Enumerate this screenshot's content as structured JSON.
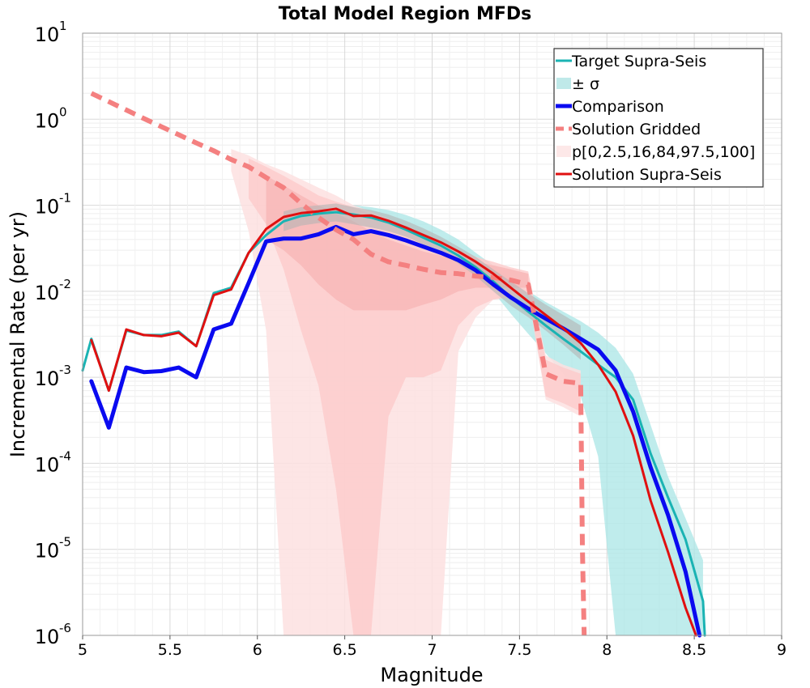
{
  "chart_data": {
    "type": "line",
    "title": "Total Model Region MFDs",
    "xlabel": "Magnitude",
    "ylabel": "Incremental Rate (per yr)",
    "xlim": [
      5,
      9
    ],
    "ylim": [
      1e-06,
      10
    ],
    "yscale": "log",
    "grid": true,
    "legend_position": "top-right",
    "xticks": [
      "5",
      "5.5",
      "6",
      "6.5",
      "7",
      "7.5",
      "8",
      "8.5",
      "9"
    ],
    "xtick_values": [
      5,
      5.5,
      6,
      6.5,
      7,
      7.5,
      8,
      8.5,
      9
    ],
    "yticks": [
      {
        "value": 10,
        "base": "10",
        "exp": "1"
      },
      {
        "value": 1,
        "base": "10",
        "exp": "0"
      },
      {
        "value": 0.1,
        "base": "10",
        "exp": "-1"
      },
      {
        "value": 0.01,
        "base": "10",
        "exp": "-2"
      },
      {
        "value": 0.001,
        "base": "10",
        "exp": "-3"
      },
      {
        "value": 0.0001,
        "base": "10",
        "exp": "-4"
      },
      {
        "value": 1e-05,
        "base": "10",
        "exp": "-5"
      },
      {
        "value": 1e-06,
        "base": "10",
        "exp": "-6"
      }
    ],
    "legend": [
      {
        "label": "Target Supra-Seis",
        "color": "#1ab3b3",
        "style": "line",
        "width": 3
      },
      {
        "label": "± σ",
        "color": "#bfe9e9",
        "style": "block"
      },
      {
        "label": "Comparison",
        "color": "#0a0af0",
        "style": "line",
        "width": 5
      },
      {
        "label": "Solution Gridded",
        "color": "#f48080",
        "style": "dashed",
        "width": 5
      },
      {
        "label": "p[0,2.5,16,84,97.5,100]",
        "color": "#fde8e8",
        "style": "block"
      },
      {
        "label": "Solution Supra-Seis",
        "color": "#e01010",
        "style": "line",
        "width": 3
      }
    ],
    "bands": [
      {
        "name": "target_sigma",
        "color": "#a9e5e5",
        "opacity": 0.75,
        "x": [
          6.45,
          6.55,
          6.65,
          6.75,
          6.85,
          6.95,
          7.05,
          7.15,
          7.25,
          7.35,
          7.45,
          7.55,
          7.65,
          7.75,
          7.85,
          7.95,
          8.05,
          8.15,
          8.25,
          8.35,
          8.45,
          8.55
        ],
        "lower": [
          0.065,
          0.06,
          0.055,
          0.05,
          0.043,
          0.035,
          0.027,
          0.02,
          0.015,
          0.0098,
          0.0055,
          0.0032,
          0.0019,
          0.0011,
          0.0006,
          0.00012,
          1e-06,
          1e-06,
          1e-06,
          1e-06,
          1e-06,
          1e-06
        ],
        "upper": [
          0.1,
          0.1,
          0.095,
          0.088,
          0.077,
          0.065,
          0.052,
          0.04,
          0.028,
          0.02,
          0.014,
          0.01,
          0.0075,
          0.0058,
          0.0045,
          0.0033,
          0.0022,
          0.0011,
          0.00028,
          7e-05,
          2.3e-05,
          7.5e-06
        ]
      },
      {
        "name": "solution_p0_100",
        "color": "#fde0e0",
        "opacity": 0.85,
        "x": [
          5.85,
          5.95,
          6.05,
          6.15,
          6.25,
          6.35,
          6.45,
          6.55,
          6.65,
          6.75,
          6.85,
          6.95,
          7.05,
          7.15,
          7.25,
          7.35,
          7.45,
          7.55,
          7.65,
          7.75,
          7.85
        ],
        "lower": [
          0.25,
          0.05,
          0.0035,
          1e-06,
          1e-06,
          1e-06,
          1e-06,
          1e-06,
          1e-06,
          1e-06,
          1e-06,
          1e-06,
          1e-06,
          0.002,
          0.005,
          0.008,
          0.009,
          0.009,
          0.00055,
          0.00045,
          0.00035
        ],
        "upper": [
          0.45,
          0.38,
          0.3,
          0.25,
          0.2,
          0.16,
          0.13,
          0.1,
          0.085,
          0.07,
          0.055,
          0.045,
          0.038,
          0.03,
          0.025,
          0.02,
          0.018,
          0.016,
          0.0018,
          0.0014,
          0.0012
        ]
      },
      {
        "name": "solution_p2_97",
        "color": "#fccaca",
        "opacity": 0.8,
        "x": [
          5.95,
          6.05,
          6.15,
          6.25,
          6.35,
          6.45,
          6.55,
          6.65,
          6.75,
          6.85,
          6.95,
          7.05,
          7.15,
          7.25,
          7.35,
          7.45,
          7.55,
          7.65,
          7.75,
          7.85
        ],
        "lower": [
          0.12,
          0.06,
          0.018,
          0.0035,
          0.0008,
          5e-05,
          1e-06,
          1e-06,
          0.00035,
          0.001,
          0.001,
          0.0012,
          0.004,
          0.0065,
          0.008,
          0.0085,
          0.009,
          0.0006,
          0.0005,
          0.0004
        ],
        "upper": [
          0.35,
          0.28,
          0.22,
          0.17,
          0.13,
          0.11,
          0.095,
          0.078,
          0.065,
          0.052,
          0.043,
          0.035,
          0.03,
          0.025,
          0.022,
          0.019,
          0.017,
          0.0016,
          0.0013,
          0.0011
        ]
      },
      {
        "name": "solution_p16_84",
        "color": "#f7b4b4",
        "opacity": 0.7,
        "x": [
          6.05,
          6.15,
          6.25,
          6.35,
          6.45,
          6.55,
          6.65,
          6.75,
          6.85,
          6.95,
          7.05,
          7.15,
          7.25,
          7.35,
          7.45,
          7.55
        ],
        "lower": [
          0.04,
          0.03,
          0.02,
          0.012,
          0.008,
          0.006,
          0.006,
          0.006,
          0.006,
          0.007,
          0.008,
          0.01,
          0.011,
          0.011,
          0.011,
          0.011
        ],
        "upper": [
          0.22,
          0.17,
          0.13,
          0.1,
          0.08,
          0.065,
          0.05,
          0.04,
          0.034,
          0.029,
          0.026,
          0.024,
          0.022,
          0.02,
          0.018,
          0.016
        ]
      },
      {
        "name": "comparison_gray",
        "color": "#b4b4b4",
        "opacity": 0.6,
        "x": [
          6.15,
          6.25,
          6.35,
          6.45,
          6.55,
          6.65,
          6.75,
          6.85,
          6.95,
          7.05,
          7.15,
          7.25,
          7.35,
          7.45,
          7.55,
          7.65,
          7.75,
          7.85
        ],
        "lower": [
          0.05,
          0.058,
          0.062,
          0.065,
          0.06,
          0.055,
          0.05,
          0.043,
          0.035,
          0.028,
          0.021,
          0.015,
          0.01,
          0.0068,
          0.005,
          0.0035,
          0.0024,
          0.0016
        ],
        "upper": [
          0.085,
          0.095,
          0.1,
          0.105,
          0.095,
          0.088,
          0.078,
          0.066,
          0.054,
          0.043,
          0.033,
          0.025,
          0.018,
          0.013,
          0.0095,
          0.007,
          0.0053,
          0.004
        ]
      }
    ],
    "series": [
      {
        "name": "Target Supra-Seis",
        "color": "#1ab3b3",
        "width": 3,
        "dash": "",
        "x": [
          5,
          5.05,
          5.15,
          5.25,
          5.35,
          5.45,
          5.55,
          5.65,
          5.75,
          5.85,
          5.95,
          6.05,
          6.15,
          6.25,
          6.35,
          6.45,
          6.55,
          6.65,
          6.75,
          6.85,
          6.95,
          7.05,
          7.15,
          7.25,
          7.35,
          7.45,
          7.55,
          7.65,
          7.75,
          7.85,
          7.95,
          8.05,
          8.15,
          8.25,
          8.35,
          8.45,
          8.55,
          8.56
        ],
        "y": [
          0.0012,
          0.0028,
          0.0007,
          0.0035,
          0.0031,
          0.0031,
          0.0034,
          0.0023,
          0.0095,
          0.011,
          0.028,
          0.045,
          0.065,
          0.075,
          0.08,
          0.083,
          0.078,
          0.072,
          0.063,
          0.052,
          0.042,
          0.034,
          0.026,
          0.019,
          0.013,
          0.0085,
          0.0058,
          0.004,
          0.0028,
          0.002,
          0.0014,
          0.001,
          0.00055,
          0.00013,
          4e-05,
          1.3e-05,
          2.5e-06,
          1e-06
        ]
      },
      {
        "name": "Comparison",
        "color": "#0a0af0",
        "width": 5,
        "dash": "",
        "x": [
          5.05,
          5.15,
          5.25,
          5.35,
          5.45,
          5.55,
          5.65,
          5.75,
          5.85,
          5.95,
          6.05,
          6.15,
          6.25,
          6.35,
          6.45,
          6.55,
          6.65,
          6.75,
          6.85,
          6.95,
          7.05,
          7.15,
          7.25,
          7.35,
          7.45,
          7.55,
          7.65,
          7.75,
          7.85,
          7.95,
          8.05,
          8.15,
          8.25,
          8.35,
          8.45,
          8.53
        ],
        "y": [
          0.0009,
          0.00026,
          0.0013,
          0.00115,
          0.00118,
          0.0013,
          0.001,
          0.0036,
          0.0042,
          0.0125,
          0.038,
          0.041,
          0.041,
          0.046,
          0.056,
          0.046,
          0.05,
          0.045,
          0.039,
          0.033,
          0.028,
          0.023,
          0.0175,
          0.012,
          0.0085,
          0.0063,
          0.0048,
          0.0037,
          0.0028,
          0.0021,
          0.0012,
          0.0004,
          9e-05,
          2.5e-05,
          5.5e-06,
          1e-06
        ]
      },
      {
        "name": "Solution Gridded",
        "color": "#f48080",
        "width": 6,
        "dash": "14,9",
        "x": [
          5.05,
          5.15,
          5.25,
          5.35,
          5.45,
          5.55,
          5.65,
          5.75,
          5.85,
          5.95,
          6.05,
          6.15,
          6.25,
          6.35,
          6.45,
          6.55,
          6.65,
          6.75,
          6.85,
          6.95,
          7.05,
          7.15,
          7.25,
          7.35,
          7.45,
          7.55,
          7.65,
          7.75,
          7.85,
          7.86,
          7.87
        ],
        "y": [
          2.0,
          1.6,
          1.28,
          1.02,
          0.82,
          0.66,
          0.53,
          0.43,
          0.34,
          0.28,
          0.21,
          0.16,
          0.105,
          0.072,
          0.052,
          0.04,
          0.027,
          0.022,
          0.02,
          0.018,
          0.0165,
          0.016,
          0.015,
          0.0145,
          0.0135,
          0.012,
          0.0011,
          0.0009,
          0.00085,
          1e-05,
          1e-06
        ]
      },
      {
        "name": "Solution Supra-Seis",
        "color": "#e01010",
        "width": 3,
        "dash": "",
        "x": [
          5.05,
          5.15,
          5.25,
          5.35,
          5.45,
          5.55,
          5.65,
          5.75,
          5.85,
          5.95,
          6.05,
          6.15,
          6.25,
          6.35,
          6.45,
          6.55,
          6.65,
          6.75,
          6.85,
          6.95,
          7.05,
          7.15,
          7.25,
          7.35,
          7.45,
          7.55,
          7.65,
          7.75,
          7.85,
          7.95,
          8.05,
          8.15,
          8.25,
          8.35,
          8.45,
          8.51
        ],
        "y": [
          0.0027,
          0.0007,
          0.0036,
          0.0031,
          0.003,
          0.0033,
          0.0023,
          0.009,
          0.0105,
          0.028,
          0.053,
          0.073,
          0.081,
          0.085,
          0.091,
          0.075,
          0.076,
          0.066,
          0.055,
          0.045,
          0.037,
          0.029,
          0.022,
          0.016,
          0.011,
          0.0076,
          0.0053,
          0.0037,
          0.0025,
          0.0014,
          0.00068,
          0.00021,
          3.7e-05,
          9.3e-06,
          2.1e-06,
          1e-06
        ]
      }
    ]
  }
}
